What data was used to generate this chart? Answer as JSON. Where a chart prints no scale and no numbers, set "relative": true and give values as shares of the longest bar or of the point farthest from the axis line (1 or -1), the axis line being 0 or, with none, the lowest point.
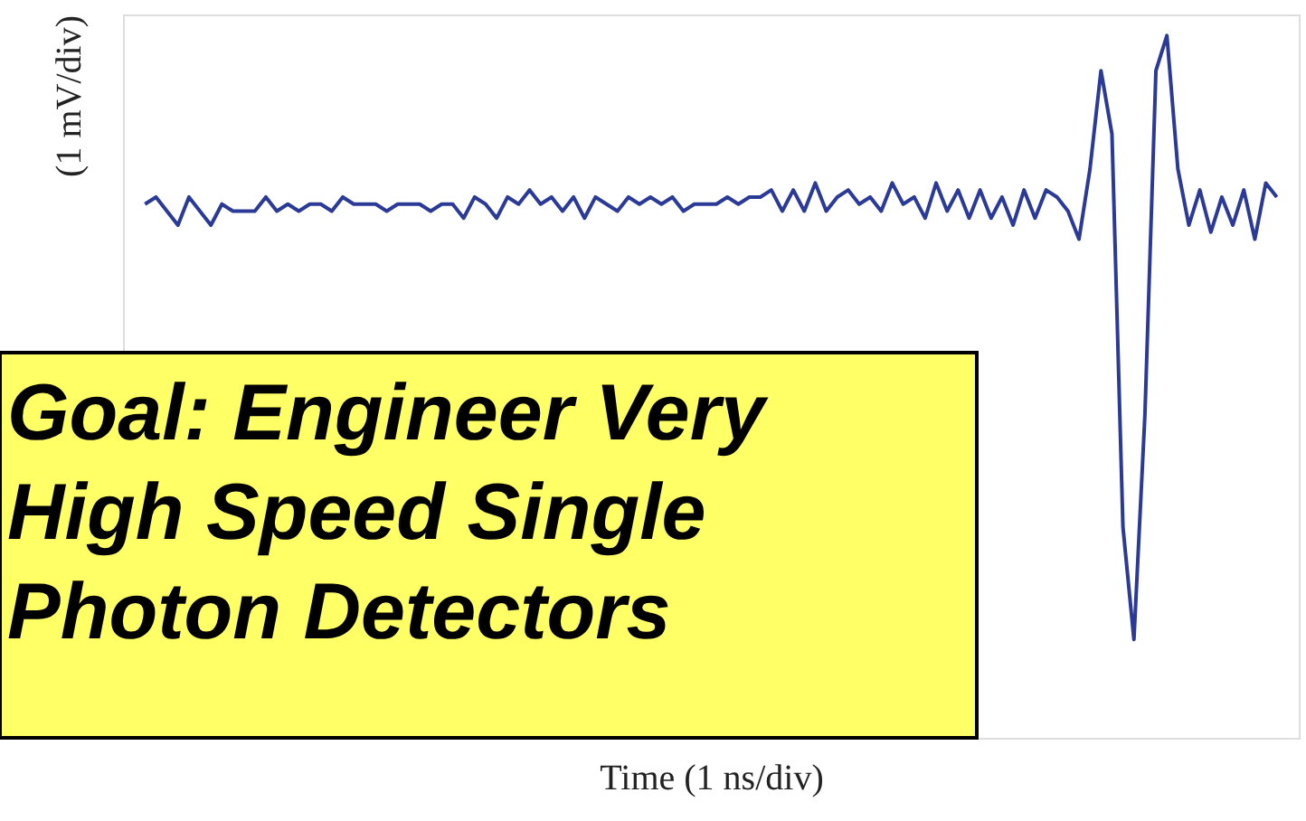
{
  "chart_data": {
    "type": "line",
    "relative": true,
    "xlabel": "Time (1 ns/div)",
    "ylabel": "(1 mV/div)",
    "annotations": [
      "Goal: Engineer Very High Speed Single Photon Detectors"
    ],
    "categories": [
      null,
      null,
      null,
      null,
      null,
      null,
      null,
      null,
      null,
      null,
      null,
      null,
      null,
      null,
      null,
      null,
      null,
      null,
      null,
      null,
      null,
      null,
      null,
      null,
      null,
      null,
      null,
      null,
      null,
      null,
      null,
      null,
      null,
      null,
      null,
      null,
      null,
      null,
      null,
      null,
      null,
      null,
      null,
      null,
      null,
      null,
      null,
      null,
      null,
      null,
      null,
      null,
      null,
      null,
      null,
      null,
      null,
      null,
      null,
      null,
      null,
      null,
      null,
      null,
      null,
      null,
      null,
      null,
      null,
      null,
      null,
      null,
      null,
      null,
      null,
      null,
      null,
      null,
      null,
      null,
      null,
      null,
      null,
      null,
      null,
      null,
      null,
      null,
      null,
      null,
      null,
      null,
      null,
      null,
      null,
      null,
      null,
      null,
      null,
      null,
      null,
      null,
      null,
      null
    ],
    "series": [
      {
        "color": "#2b3a96",
        "values": [
          0.76,
          0.77,
          0.75,
          0.73,
          0.77,
          0.75,
          0.73,
          0.76,
          0.75,
          0.75,
          0.75,
          0.77,
          0.75,
          0.76,
          0.75,
          0.76,
          0.76,
          0.75,
          0.77,
          0.76,
          0.76,
          0.76,
          0.75,
          0.76,
          0.76,
          0.76,
          0.75,
          0.76,
          0.76,
          0.74,
          0.77,
          0.76,
          0.74,
          0.77,
          0.76,
          0.78,
          0.76,
          0.77,
          0.75,
          0.77,
          0.74,
          0.77,
          0.76,
          0.75,
          0.77,
          0.76,
          0.77,
          0.76,
          0.77,
          0.75,
          0.76,
          0.76,
          0.76,
          0.77,
          0.76,
          0.77,
          0.77,
          0.78,
          0.75,
          0.78,
          0.75,
          0.79,
          0.75,
          0.77,
          0.78,
          0.76,
          0.77,
          0.75,
          0.79,
          0.76,
          0.77,
          0.74,
          0.79,
          0.75,
          0.78,
          0.74,
          0.78,
          0.74,
          0.77,
          0.73,
          0.78,
          0.74,
          0.78,
          0.77,
          0.75,
          0.71,
          0.81,
          0.95,
          0.86,
          0.3,
          0.14,
          0.46,
          0.95,
          1.0,
          0.81,
          0.73,
          0.78,
          0.72,
          0.77,
          0.73,
          0.78,
          0.71,
          0.79,
          0.77
        ]
      }
    ]
  }
}
